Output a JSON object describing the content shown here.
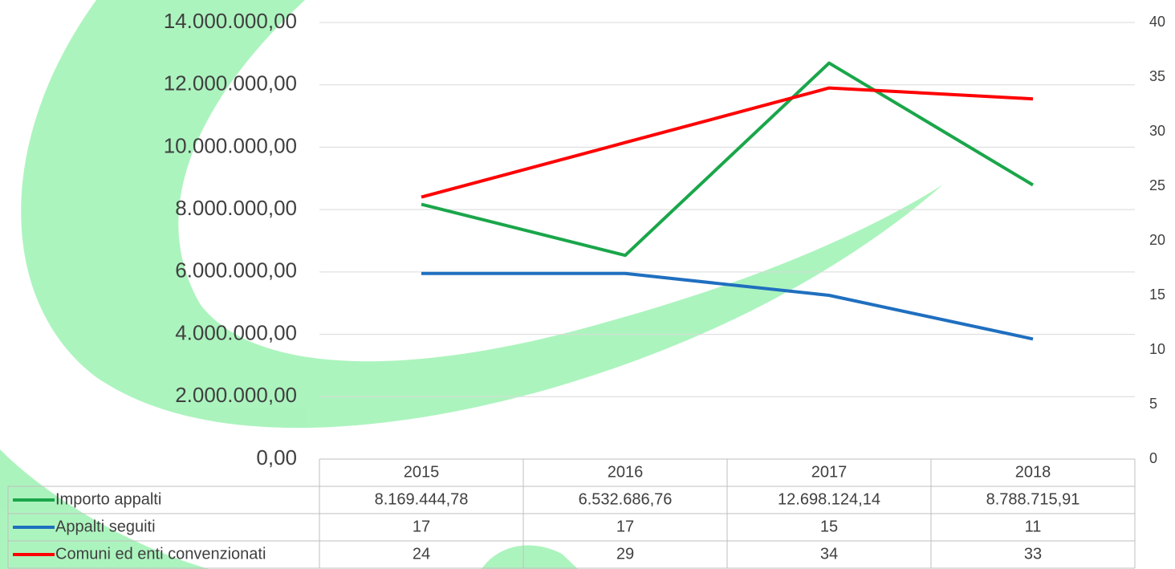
{
  "chart_data": {
    "type": "line",
    "categories": [
      "2015",
      "2016",
      "2017",
      "2018"
    ],
    "ylim": [
      0,
      14000000
    ],
    "yticks": [
      {
        "value": 0,
        "label": "0,00"
      },
      {
        "value": 2000000,
        "label": "2.000.000,00"
      },
      {
        "value": 4000000,
        "label": "4.000.000,00"
      },
      {
        "value": 6000000,
        "label": "6.000.000,00"
      },
      {
        "value": 8000000,
        "label": "8.000.000,00"
      },
      {
        "value": 10000000,
        "label": "10.000.000,00"
      },
      {
        "value": 12000000,
        "label": "12.000.000,00"
      },
      {
        "value": 14000000,
        "label": "14.000.000,00"
      }
    ],
    "y2lim": [
      0,
      40
    ],
    "y2ticks": [
      0,
      5,
      10,
      15,
      20,
      25,
      30,
      35,
      40
    ],
    "grid": true,
    "series": [
      {
        "name": "Importo appalti",
        "color": "#1aa64a",
        "values": [
          8169444.78,
          6532686.76,
          12698124.14,
          8788715.91
        ],
        "value_labels": [
          "8.169.444,78",
          "6.532.686,76",
          "12.698.124,14",
          "8.788.715,91"
        ]
      },
      {
        "name": "Appalti seguiti",
        "color": "#1f6fbf",
        "axis": "y2",
        "values": [
          17,
          17,
          15,
          11
        ]
      },
      {
        "name": "Comuni ed enti convenzionati",
        "color": "#ff0000",
        "axis": "y2",
        "values": [
          24,
          29,
          34,
          33
        ]
      }
    ]
  }
}
